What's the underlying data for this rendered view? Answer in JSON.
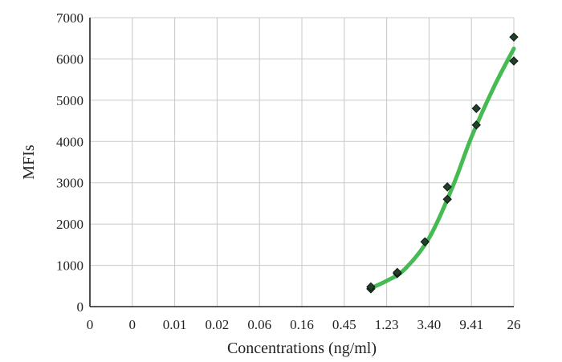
{
  "chart_data": {
    "type": "scatter",
    "title": "",
    "xlabel": "Concentrations (ng/ml)",
    "ylabel": "MFIs",
    "x_tick_labels": [
      "0",
      "0",
      "0.01",
      "0.02",
      "0.06",
      "0.16",
      "0.45",
      "1.23",
      "3.40",
      "9.41",
      "26"
    ],
    "y_ticks": [
      0,
      1000,
      2000,
      3000,
      4000,
      5000,
      6000,
      7000
    ],
    "ylim": [
      0,
      7000
    ],
    "grid": true,
    "legend": "none",
    "colors": {
      "curve": "#3cb64a",
      "points": "#233f2a"
    },
    "points": [
      {
        "x": 0.85,
        "y": 430
      },
      {
        "x": 0.85,
        "y": 480
      },
      {
        "x": 1.6,
        "y": 800
      },
      {
        "x": 1.6,
        "y": 830
      },
      {
        "x": 3.1,
        "y": 1570
      },
      {
        "x": 5.3,
        "y": 2600
      },
      {
        "x": 5.3,
        "y": 2900
      },
      {
        "x": 10.6,
        "y": 4400
      },
      {
        "x": 10.6,
        "y": 4800
      },
      {
        "x": 26,
        "y": 5950
      },
      {
        "x": 26,
        "y": 6530
      }
    ],
    "fit_curve": [
      {
        "x": 0.85,
        "y": 450
      },
      {
        "x": 1.23,
        "y": 620
      },
      {
        "x": 1.9,
        "y": 900
      },
      {
        "x": 3.4,
        "y": 1650
      },
      {
        "x": 6.0,
        "y": 2900
      },
      {
        "x": 9.41,
        "y": 4100
      },
      {
        "x": 16.0,
        "y": 5300
      },
      {
        "x": 26,
        "y": 6250
      }
    ]
  }
}
